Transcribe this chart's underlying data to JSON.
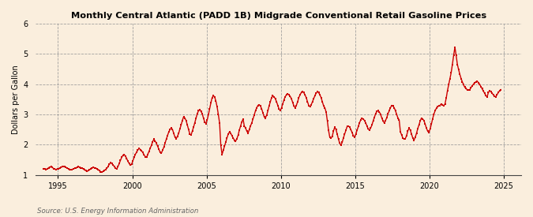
{
  "title": "Monthly Central Atlantic (PADD 1B) Midgrade Conventional Retail Gasoline Prices",
  "ylabel": "Dollars per Gallon",
  "source": "Source: U.S. Energy Information Administration",
  "background_color": "#faeedd",
  "line_color": "#cc0000",
  "marker": "s",
  "markersize": 1.8,
  "linewidth": 1.0,
  "ylim": [
    1,
    6
  ],
  "yticks": [
    1,
    2,
    3,
    4,
    5,
    6
  ],
  "xtick_years": [
    1995,
    2000,
    2005,
    2010,
    2015,
    2020,
    2025
  ],
  "start_year": 1994,
  "start_month": 1,
  "prices": [
    1.21,
    1.2,
    1.18,
    1.2,
    1.24,
    1.26,
    1.28,
    1.25,
    1.21,
    1.19,
    1.18,
    1.2,
    1.21,
    1.23,
    1.25,
    1.27,
    1.28,
    1.27,
    1.25,
    1.23,
    1.2,
    1.18,
    1.17,
    1.18,
    1.2,
    1.22,
    1.24,
    1.25,
    1.27,
    1.26,
    1.24,
    1.22,
    1.2,
    1.17,
    1.14,
    1.12,
    1.15,
    1.17,
    1.2,
    1.22,
    1.25,
    1.24,
    1.22,
    1.2,
    1.17,
    1.14,
    1.11,
    1.09,
    1.12,
    1.15,
    1.18,
    1.22,
    1.28,
    1.35,
    1.4,
    1.38,
    1.33,
    1.28,
    1.22,
    1.2,
    1.28,
    1.38,
    1.48,
    1.58,
    1.65,
    1.68,
    1.62,
    1.55,
    1.45,
    1.38,
    1.32,
    1.35,
    1.47,
    1.58,
    1.68,
    1.75,
    1.82,
    1.88,
    1.84,
    1.8,
    1.74,
    1.67,
    1.6,
    1.58,
    1.68,
    1.78,
    1.88,
    1.98,
    2.1,
    2.18,
    2.12,
    2.05,
    1.95,
    1.85,
    1.75,
    1.72,
    1.82,
    1.92,
    2.05,
    2.18,
    2.3,
    2.42,
    2.5,
    2.55,
    2.5,
    2.38,
    2.25,
    2.2,
    2.28,
    2.38,
    2.52,
    2.65,
    2.8,
    2.92,
    2.88,
    2.8,
    2.65,
    2.5,
    2.35,
    2.32,
    2.45,
    2.58,
    2.72,
    2.88,
    3.02,
    3.12,
    3.15,
    3.1,
    3.02,
    2.88,
    2.75,
    2.7,
    2.82,
    3.0,
    3.18,
    3.38,
    3.55,
    3.62,
    3.58,
    3.45,
    3.25,
    3.0,
    2.72,
    1.98,
    1.68,
    1.82,
    1.95,
    2.08,
    2.22,
    2.35,
    2.42,
    2.38,
    2.3,
    2.22,
    2.15,
    2.12,
    2.2,
    2.32,
    2.48,
    2.62,
    2.75,
    2.85,
    2.62,
    2.55,
    2.45,
    2.38,
    2.5,
    2.62,
    2.72,
    2.85,
    2.98,
    3.12,
    3.22,
    3.3,
    3.32,
    3.28,
    3.18,
    3.05,
    2.92,
    2.88,
    2.98,
    3.12,
    3.28,
    3.42,
    3.55,
    3.62,
    3.58,
    3.52,
    3.42,
    3.3,
    3.18,
    3.12,
    3.22,
    3.35,
    3.48,
    3.58,
    3.65,
    3.68,
    3.65,
    3.6,
    3.52,
    3.4,
    3.28,
    3.22,
    3.3,
    3.42,
    3.55,
    3.65,
    3.72,
    3.75,
    3.72,
    3.65,
    3.55,
    3.42,
    3.3,
    3.25,
    3.32,
    3.42,
    3.52,
    3.62,
    3.7,
    3.75,
    3.72,
    3.65,
    3.55,
    3.42,
    3.28,
    3.22,
    3.08,
    2.78,
    2.48,
    2.25,
    2.22,
    2.28,
    2.45,
    2.58,
    2.5,
    2.35,
    2.18,
    2.05,
    1.98,
    2.08,
    2.22,
    2.35,
    2.48,
    2.6,
    2.62,
    2.58,
    2.5,
    2.4,
    2.3,
    2.25,
    2.35,
    2.48,
    2.6,
    2.72,
    2.82,
    2.88,
    2.85,
    2.8,
    2.72,
    2.62,
    2.52,
    2.48,
    2.55,
    2.65,
    2.78,
    2.9,
    3.02,
    3.1,
    3.12,
    3.08,
    3.0,
    2.88,
    2.78,
    2.72,
    2.8,
    2.9,
    3.02,
    3.12,
    3.22,
    3.3,
    3.28,
    3.22,
    3.12,
    3.0,
    2.88,
    2.82,
    2.42,
    2.32,
    2.22,
    2.18,
    2.2,
    2.3,
    2.45,
    2.55,
    2.48,
    2.35,
    2.22,
    2.15,
    2.25,
    2.38,
    2.52,
    2.65,
    2.78,
    2.88,
    2.85,
    2.8,
    2.68,
    2.55,
    2.45,
    2.4,
    2.52,
    2.68,
    2.85,
    3.0,
    3.12,
    3.2,
    3.25,
    3.28,
    3.3,
    3.35,
    3.32,
    3.28,
    3.35,
    3.55,
    3.78,
    3.98,
    4.18,
    4.38,
    4.65,
    4.95,
    5.22,
    4.95,
    4.65,
    4.48,
    4.32,
    4.18,
    4.08,
    3.98,
    3.9,
    3.85,
    3.82,
    3.8,
    3.82,
    3.88,
    3.95,
    4.0,
    4.05,
    4.08,
    4.1,
    4.05,
    4.0,
    3.92,
    3.85,
    3.78,
    3.7,
    3.62,
    3.58,
    3.72,
    3.78,
    3.75,
    3.7,
    3.65,
    3.6,
    3.58,
    3.65,
    3.72,
    3.78,
    3.82
  ]
}
